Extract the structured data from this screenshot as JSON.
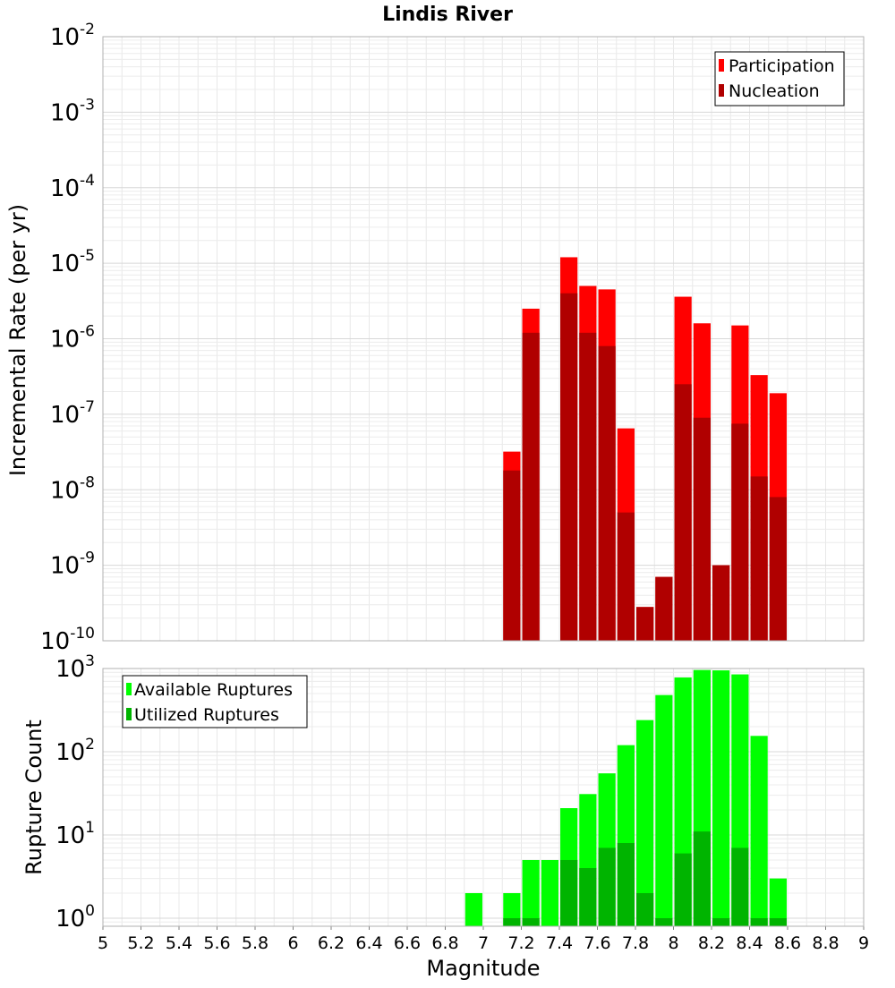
{
  "chart_data": [
    {
      "type": "bar",
      "title": "Lindis River",
      "xlabel": "",
      "ylabel": "Incremental Rate (per yr)",
      "yscale": "log",
      "ylim": [
        1e-10,
        0.01
      ],
      "xlim": [
        5,
        9
      ],
      "y_tick_exponents": [
        "-10",
        "-9",
        "-8",
        "-7",
        "-6",
        "-5",
        "-4",
        "-3",
        "-2"
      ],
      "y_tick_base": "10",
      "grid": true,
      "legend_position": "top-right",
      "series": [
        {
          "name": "Participation",
          "color": "#ff0000",
          "x": [
            7.15,
            7.25,
            7.45,
            7.55,
            7.65,
            7.75,
            7.85,
            7.95,
            8.05,
            8.15,
            8.25,
            8.35,
            8.45,
            8.55
          ],
          "values": [
            3.2e-08,
            2.5e-06,
            1.2e-05,
            5e-06,
            4.5e-06,
            6.5e-08,
            2.8e-10,
            7e-10,
            3.6e-06,
            1.6e-06,
            1e-09,
            1.5e-06,
            3.3e-07,
            1.9e-07
          ]
        },
        {
          "name": "Nucleation",
          "color": "#b00000",
          "x": [
            7.15,
            7.25,
            7.45,
            7.55,
            7.65,
            7.75,
            7.85,
            7.95,
            8.05,
            8.15,
            8.25,
            8.35,
            8.45,
            8.55
          ],
          "values": [
            1.8e-08,
            1.2e-06,
            4e-06,
            1.2e-06,
            8e-07,
            5e-09,
            2.8e-10,
            7e-10,
            2.5e-07,
            9e-08,
            1e-09,
            7.5e-08,
            1.5e-08,
            8e-09
          ]
        }
      ]
    },
    {
      "type": "bar",
      "title": "",
      "xlabel": "Magnitude",
      "ylabel": "Rupture Count",
      "yscale": "log",
      "ylim": [
        0.8,
        1000
      ],
      "xlim": [
        5,
        9
      ],
      "x_ticks": [
        "5",
        "5.2",
        "5.4",
        "5.6",
        "5.8",
        "6",
        "6.2",
        "6.4",
        "6.6",
        "6.8",
        "7",
        "7.2",
        "7.4",
        "7.6",
        "7.8",
        "8",
        "8.2",
        "8.4",
        "8.6",
        "8.8",
        "9"
      ],
      "y_tick_exponents": [
        "0",
        "1",
        "2",
        "3"
      ],
      "y_tick_base": "10",
      "grid": true,
      "legend_position": "top-left",
      "series": [
        {
          "name": "Available Ruptures",
          "color": "#00ff00",
          "x": [
            6.95,
            7.15,
            7.25,
            7.35,
            7.45,
            7.55,
            7.65,
            7.75,
            7.85,
            7.95,
            8.05,
            8.15,
            8.25,
            8.35,
            8.45,
            8.55
          ],
          "values": [
            2,
            2,
            5,
            5,
            21,
            31,
            55,
            120,
            240,
            480,
            780,
            960,
            950,
            850,
            155,
            3
          ]
        },
        {
          "name": "Utilized Ruptures",
          "color": "#00b400",
          "x": [
            7.15,
            7.25,
            7.45,
            7.55,
            7.65,
            7.75,
            7.85,
            7.95,
            8.05,
            8.15,
            8.25,
            8.35,
            8.45,
            8.55
          ],
          "values": [
            1,
            1,
            5,
            4,
            7,
            8,
            2,
            1,
            6,
            11,
            1,
            7,
            1,
            1
          ]
        }
      ]
    }
  ]
}
